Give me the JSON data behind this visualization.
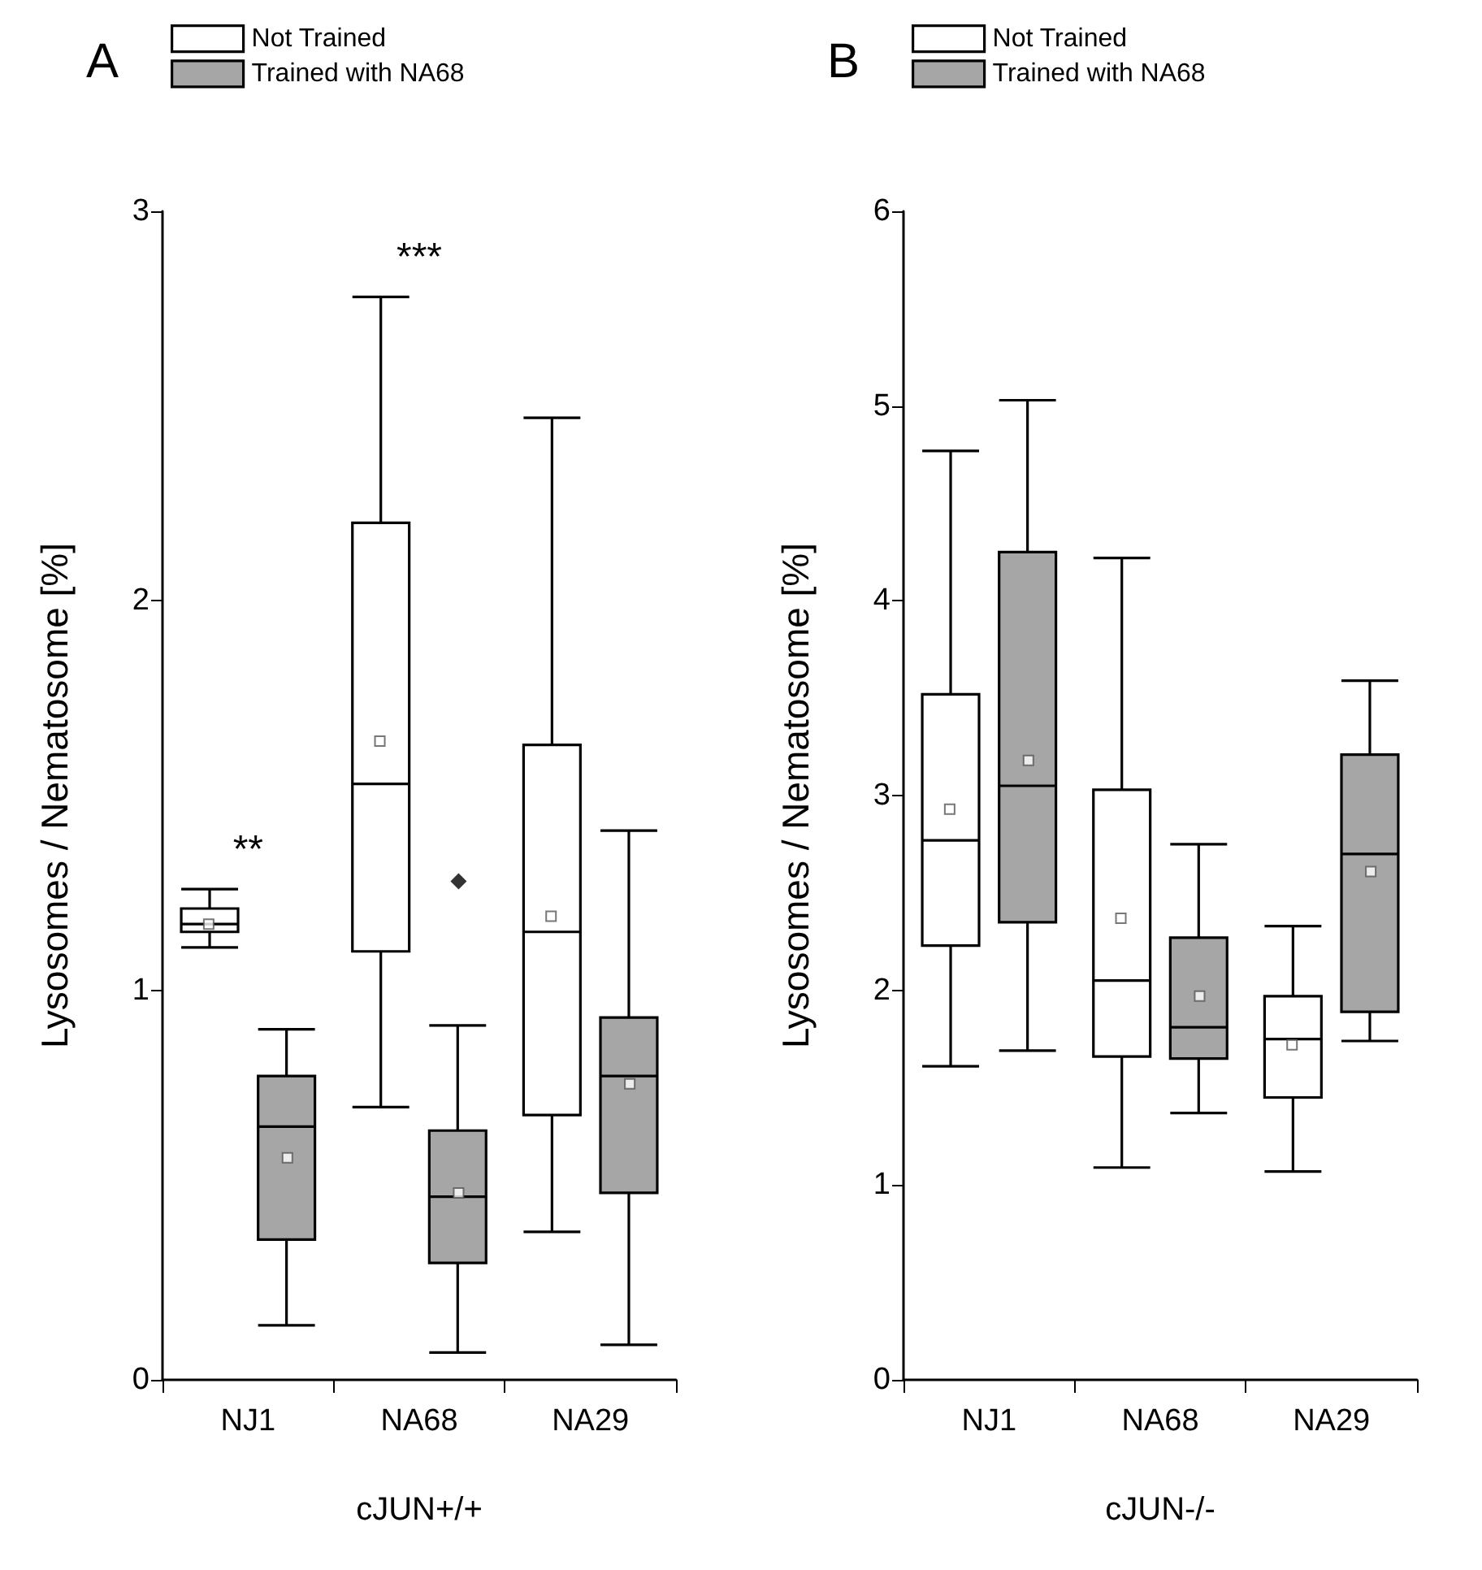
{
  "chart_data": [
    {
      "type": "box",
      "title": "A",
      "xlabel": "cJUN+/+",
      "ylabel": "Lysosomes / Nematosome [%]",
      "categories": [
        "NJ1",
        "NA68",
        "NA29"
      ],
      "ylim": [
        0,
        3
      ],
      "yticks": [
        0,
        1,
        2,
        3
      ],
      "grid": false,
      "legend": "top left",
      "annotations": [
        "**",
        "***"
      ],
      "series": [
        {
          "name": "Not Trained",
          "color": "#ffffff",
          "boxes": [
            {
              "low": 1.11,
              "q1": 1.15,
              "median": 1.17,
              "q3": 1.21,
              "high": 1.26,
              "mean": 1.17
            },
            {
              "low": 0.7,
              "q1": 1.1,
              "median": 1.53,
              "q3": 2.2,
              "high": 2.78,
              "mean": 1.64
            },
            {
              "low": 0.38,
              "q1": 0.68,
              "median": 1.15,
              "q3": 1.63,
              "high": 2.47,
              "mean": 1.19
            }
          ]
        },
        {
          "name": "Trained with NA68",
          "color": "#a6a6a6",
          "boxes": [
            {
              "low": 0.14,
              "q1": 0.36,
              "median": 0.65,
              "q3": 0.78,
              "high": 0.9,
              "mean": 0.57
            },
            {
              "low": 0.07,
              "q1": 0.3,
              "median": 0.47,
              "q3": 0.64,
              "high": 0.91,
              "mean": 0.48,
              "outliers": [
                1.28
              ]
            },
            {
              "low": 0.09,
              "q1": 0.48,
              "median": 0.78,
              "q3": 0.93,
              "high": 1.41,
              "mean": 0.76
            }
          ]
        }
      ]
    },
    {
      "type": "box",
      "title": "B",
      "xlabel": "cJUN-/-",
      "ylabel": "Lysosomes / Nematosome [%]",
      "categories": [
        "NJ1",
        "NA68",
        "NA29"
      ],
      "ylim": [
        0,
        6
      ],
      "yticks": [
        0,
        1,
        2,
        3,
        4,
        5,
        6
      ],
      "grid": false,
      "legend": "top left",
      "series": [
        {
          "name": "Not Trained",
          "color": "#ffffff",
          "boxes": [
            {
              "low": 1.61,
              "q1": 2.23,
              "median": 2.77,
              "q3": 3.52,
              "high": 4.77,
              "mean": 2.93
            },
            {
              "low": 1.09,
              "q1": 1.66,
              "median": 2.05,
              "q3": 3.03,
              "high": 4.22,
              "mean": 2.37
            },
            {
              "low": 1.07,
              "q1": 1.45,
              "median": 1.75,
              "q3": 1.97,
              "high": 2.33,
              "mean": 1.72
            }
          ]
        },
        {
          "name": "Trained with NA68",
          "color": "#a6a6a6",
          "boxes": [
            {
              "low": 1.69,
              "q1": 2.35,
              "median": 3.05,
              "q3": 4.25,
              "high": 5.03,
              "mean": 3.18
            },
            {
              "low": 1.37,
              "q1": 1.65,
              "median": 1.81,
              "q3": 2.27,
              "high": 2.75,
              "mean": 1.97
            },
            {
              "low": 1.74,
              "q1": 1.89,
              "median": 2.7,
              "q3": 3.21,
              "high": 3.59,
              "mean": 2.61
            }
          ]
        }
      ]
    }
  ]
}
